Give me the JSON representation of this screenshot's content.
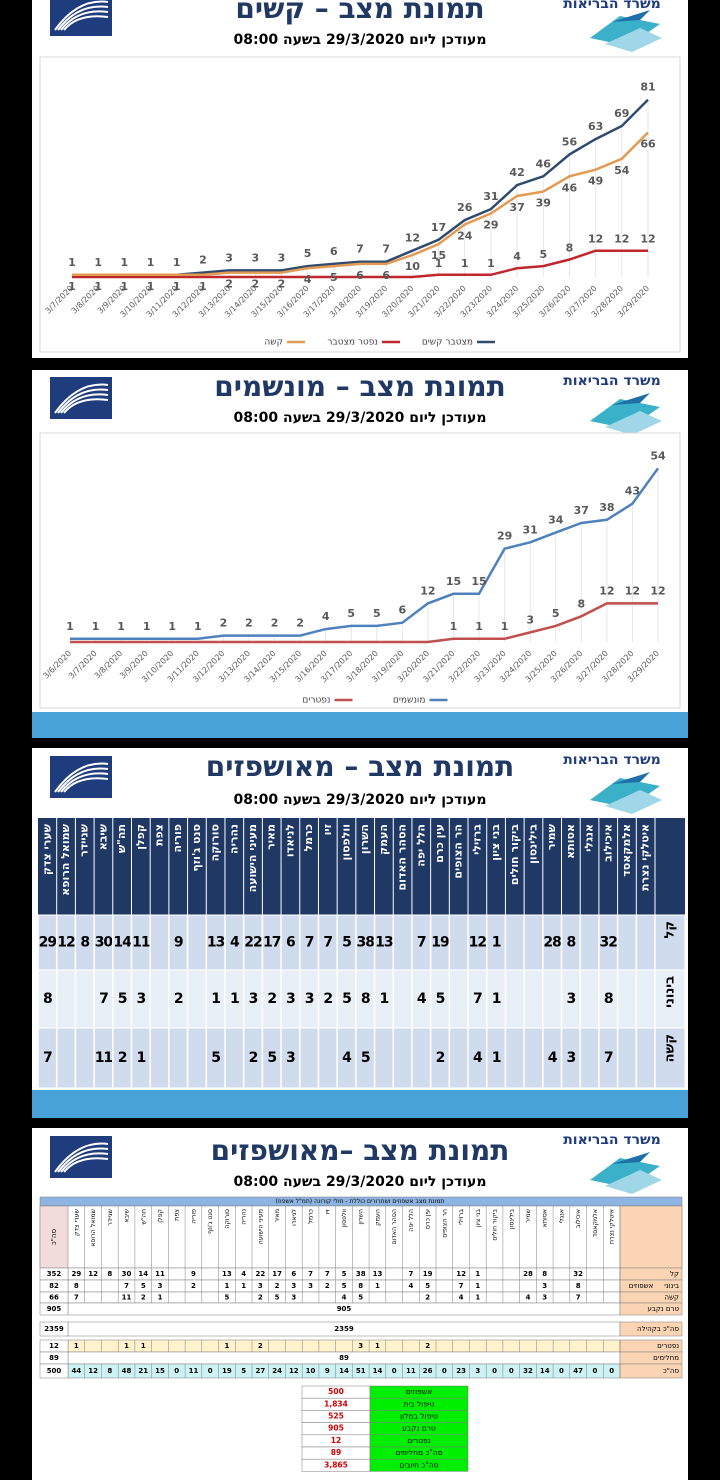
{
  "chart_data": [
    {
      "type": "line",
      "brand": "משרד הבריאות",
      "title": "תמונת מצב – קשים",
      "subtitle": "מעודכן ליום 29/3/2020 בשעה 08:00",
      "categories": [
        "3/7/2020",
        "3/8/2020",
        "3/9/2020",
        "3/10/2020",
        "3/11/2020",
        "3/12/2020",
        "3/13/2020",
        "3/14/2020",
        "3/15/2020",
        "3/16/2020",
        "3/17/2020",
        "3/18/2020",
        "3/19/2020",
        "3/20/2020",
        "3/21/2020",
        "3/22/2020",
        "3/23/2020",
        "3/24/2020",
        "3/25/2020",
        "3/26/2020",
        "3/27/2020",
        "3/28/2020",
        "3/29/2020"
      ],
      "ylim": [
        0,
        90
      ],
      "series": [
        {
          "name": "מצטבר קשים",
          "color": "#2f4b6e",
          "values": [
            1,
            1,
            1,
            1,
            1,
            2,
            3,
            3,
            3,
            5,
            6,
            7,
            7,
            12,
            17,
            26,
            31,
            42,
            46,
            56,
            63,
            69,
            81
          ]
        },
        {
          "name": "נפטר מצטבר",
          "color": "#c0272d",
          "values": [
            0,
            0,
            0,
            0,
            0,
            0,
            0,
            0,
            0,
            0,
            0,
            0,
            0,
            0,
            1,
            1,
            1,
            4,
            5,
            8,
            12,
            12,
            12
          ]
        },
        {
          "name": "קשה",
          "color": "#e39a52",
          "values": [
            1,
            1,
            1,
            1,
            1,
            1,
            2,
            2,
            2,
            4,
            5,
            6,
            6,
            10,
            15,
            24,
            29,
            37,
            39,
            46,
            49,
            54,
            66
          ]
        }
      ]
    },
    {
      "type": "line",
      "brand": "משרד הבריאות",
      "title": "תמונת מצב – מונשמים",
      "subtitle": "מעודכן ליום 29/3/2020 בשעה 08:00",
      "categories": [
        "3/6/2020",
        "3/7/2020",
        "3/8/2020",
        "3/9/2020",
        "3/10/2020",
        "3/11/2020",
        "3/12/2020",
        "3/13/2020",
        "3/14/2020",
        "3/15/2020",
        "3/16/2020",
        "3/17/2020",
        "3/18/2020",
        "3/19/2020",
        "3/20/2020",
        "3/21/2020",
        "3/22/2020",
        "3/23/2020",
        "3/24/2020",
        "3/25/2020",
        "3/26/2020",
        "3/27/2020",
        "3/28/2020",
        "3/29/2020"
      ],
      "ylim": [
        0,
        60
      ],
      "series": [
        {
          "name": "מונשמים",
          "color": "#4f81bd",
          "values": [
            1,
            1,
            1,
            1,
            1,
            1,
            2,
            2,
            2,
            2,
            4,
            5,
            5,
            6,
            12,
            15,
            15,
            29,
            31,
            34,
            37,
            38,
            43,
            54
          ]
        },
        {
          "name": "נפטרים",
          "color": "#c0504d",
          "values": [
            0,
            0,
            0,
            0,
            0,
            0,
            0,
            0,
            0,
            0,
            0,
            0,
            0,
            0,
            0,
            1,
            1,
            1,
            3,
            5,
            8,
            12,
            12,
            12
          ]
        }
      ]
    }
  ],
  "tables": [
    {
      "brand": "משרד הבריאות",
      "title": "תמונת מצב – מאושפזים",
      "subtitle": "מעודכן ליום 29/3/2020 בשעה 08:00",
      "columns": [
        "איטלקי נצרת",
        "אלמקאסד",
        "איכילוב",
        "אנגלי",
        "אסותא",
        "שמיר",
        "בילינסון",
        "ביקור חולים",
        "בני ציון",
        "ברזילי",
        "הר הצופים",
        "עין כרם",
        "הלל יפה",
        "הסהר האדום",
        "העמק",
        "השרון",
        "וולפסון",
        "זיו",
        "כרמל",
        "לניאדו",
        "מאיר",
        "מעיני הישועה",
        "נהריה",
        "סורוקה",
        "סנט ג'וזף",
        "פוריה",
        "צפת",
        "קפלן",
        "תה\"ש",
        "שיבא",
        "שניידר",
        "שמואל הרופא",
        "שערי צדק"
      ],
      "rows": [
        {
          "label": "קל",
          "values": [
            null,
            null,
            32,
            null,
            8,
            28,
            null,
            null,
            1,
            12,
            null,
            19,
            7,
            null,
            13,
            38,
            5,
            7,
            7,
            6,
            17,
            22,
            4,
            13,
            null,
            9,
            null,
            11,
            14,
            30,
            8,
            12,
            29
          ]
        },
        {
          "label": "בינוני",
          "values": [
            null,
            null,
            8,
            null,
            3,
            null,
            null,
            null,
            1,
            7,
            null,
            5,
            4,
            null,
            1,
            8,
            5,
            2,
            3,
            3,
            2,
            3,
            1,
            1,
            null,
            2,
            null,
            3,
            5,
            7,
            null,
            null,
            8
          ]
        },
        {
          "label": "קשה",
          "values": [
            null,
            null,
            7,
            null,
            3,
            4,
            null,
            null,
            1,
            4,
            null,
            2,
            null,
            null,
            null,
            5,
            4,
            null,
            null,
            3,
            5,
            2,
            null,
            5,
            null,
            null,
            null,
            1,
            2,
            11,
            null,
            null,
            7
          ]
        }
      ]
    },
    {
      "brand": "משרד הבריאות",
      "title": "תמונת מצב –מאושפזים",
      "subtitle": "מעודכן ליום 29/3/2020 בשעה 08:00",
      "caption": "תמונת מצב אשפוזים ושחרורים כוללת - חולי קורונה (תמ\"ל אשפוז)",
      "total_header": "סה\"כ",
      "group_label": "אשפוזים",
      "columns": [
        "איטלקי נצרת",
        "אלמקאסד",
        "איכילוב",
        "אנגלי",
        "אסותא",
        "שמיר",
        "בילינסון",
        "ביקור חולים",
        "בני ציון",
        "ברזילי",
        "הר הצופים",
        "עין כרם",
        "הלל יפה",
        "הסהר האדום",
        "העמק",
        "השרון",
        "וולפסון",
        "זיו",
        "כרמל",
        "לניאדו",
        "מאיר",
        "מעיני הישועה",
        "נהריה",
        "סורוקה",
        "סנט ג'וזף",
        "פוריה",
        "צפת",
        "קפלן",
        "תה\"ש",
        "שיבא",
        "שניידר",
        "שמואל הרופא",
        "שערי צדק"
      ],
      "rows": [
        {
          "label": "קל",
          "total": 352,
          "values": [
            null,
            null,
            32,
            null,
            8,
            28,
            null,
            null,
            1,
            12,
            null,
            19,
            7,
            null,
            13,
            38,
            5,
            7,
            7,
            6,
            17,
            22,
            4,
            13,
            null,
            9,
            null,
            11,
            14,
            30,
            8,
            12,
            29
          ]
        },
        {
          "label": "בינוני",
          "total": 82,
          "values": [
            null,
            null,
            8,
            null,
            3,
            null,
            null,
            null,
            1,
            7,
            null,
            5,
            4,
            null,
            1,
            8,
            5,
            2,
            3,
            3,
            2,
            3,
            1,
            1,
            null,
            2,
            null,
            3,
            5,
            7,
            null,
            null,
            8
          ]
        },
        {
          "label": "קשה",
          "total": 66,
          "values": [
            null,
            null,
            7,
            null,
            3,
            4,
            null,
            null,
            1,
            4,
            null,
            2,
            null,
            null,
            null,
            5,
            4,
            null,
            null,
            3,
            5,
            2,
            null,
            5,
            null,
            null,
            null,
            1,
            2,
            11,
            null,
            null,
            7
          ]
        },
        {
          "label": "טרם נקבע",
          "total": 905,
          "span": 905
        },
        {
          "label": "סה\"כ בקהילה",
          "total": 2359,
          "span": 2359
        },
        {
          "label": "נפטרים",
          "total": 12,
          "values": [
            null,
            null,
            null,
            null,
            null,
            null,
            null,
            null,
            null,
            null,
            null,
            2,
            null,
            null,
            1,
            3,
            null,
            null,
            null,
            null,
            null,
            2,
            null,
            1,
            null,
            null,
            null,
            null,
            1,
            1,
            null,
            null,
            1
          ]
        },
        {
          "label": "מחלימים",
          "total": 89,
          "span": 89
        },
        {
          "label": "סה\"כ",
          "total": 500,
          "values": [
            0,
            0,
            47,
            0,
            14,
            32,
            0,
            0,
            3,
            23,
            0,
            26,
            11,
            0,
            14,
            51,
            14,
            9,
            10,
            12,
            24,
            27,
            5,
            19,
            0,
            11,
            0,
            15,
            21,
            48,
            8,
            12,
            44
          ]
        }
      ],
      "summary": [
        {
          "label": "אשפוזים",
          "value": "500"
        },
        {
          "label": "טיפול בית",
          "value": "1,834"
        },
        {
          "label": "טיפול במלון",
          "value": "525"
        },
        {
          "label": "טרם נקבע",
          "value": "905"
        },
        {
          "label": "נפטרים",
          "value": "12"
        },
        {
          "label": "סה\"כ מחלימים",
          "value": "89"
        },
        {
          "label": "סה\"כ חיובים",
          "value": "3,865"
        }
      ]
    }
  ]
}
